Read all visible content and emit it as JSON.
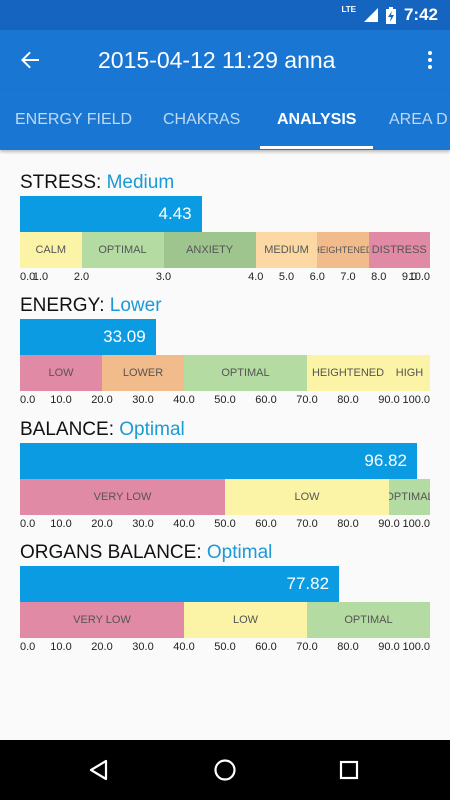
{
  "status_bar": {
    "network": "LTE",
    "time": "7:42",
    "icons": [
      "lte-signal-icon",
      "battery-charging-icon"
    ]
  },
  "app_bar": {
    "title": "2015-04-12 11:29 anna",
    "back_icon": "arrow-back-icon",
    "menu_icon": "more-vert-icon"
  },
  "tabs": [
    {
      "label": "ENERGY FIELD",
      "active": false
    },
    {
      "label": "CHAKRAS",
      "active": false
    },
    {
      "label": "ANALYSIS",
      "active": true
    },
    {
      "label": "AREA D",
      "active": false
    }
  ],
  "colors": {
    "app_bar": "#1976d2",
    "status_bar": "#1565c0",
    "bar": "#0a9be3",
    "level_text": "#1a9ad6",
    "pink": "#e08aa5",
    "green": "#b4dba2",
    "dark_green": "#9fc58e",
    "peach": "#fcd9a4",
    "orange": "#f2bb8c",
    "yellow": "#fbf3a6"
  },
  "sections": [
    {
      "label": "STRESS:",
      "level": "Medium",
      "value": 4.43,
      "value_text": "4.43",
      "min": 0,
      "max": 10,
      "zones": [
        {
          "label": "CALM",
          "from": 0,
          "to": 1.5,
          "color": "#fbf3a6"
        },
        {
          "label": "OPTIMAL",
          "from": 1.5,
          "to": 3.5,
          "color": "#b4dba2"
        },
        {
          "label": "ANXIETY",
          "from": 3.5,
          "to": 5.75,
          "color": "#9fc58e"
        },
        {
          "label": "MEDIUM",
          "from": 5.75,
          "to": 7.25,
          "color": "#fcd9a4"
        },
        {
          "label": "HEIGHTENED",
          "from": 7.25,
          "to": 8.5,
          "color": "#f2bb8c"
        },
        {
          "label": "DISTRESS",
          "from": 8.5,
          "to": 10,
          "color": "#e08aa5"
        }
      ],
      "ticks": [
        {
          "label": "0.0",
          "at": 0
        },
        {
          "label": "1.0",
          "at": 0.5
        },
        {
          "label": "2.0",
          "at": 1.5
        },
        {
          "label": "3.0",
          "at": 3.5
        },
        {
          "label": "4.0",
          "at": 5.75
        },
        {
          "label": "5.0",
          "at": 6.5
        },
        {
          "label": "6.0",
          "at": 7.25
        },
        {
          "label": "7.0",
          "at": 8
        },
        {
          "label": "8.0",
          "at": 8.75
        },
        {
          "label": "9.0",
          "at": 9.5
        },
        {
          "label": "10.0",
          "at": 10
        }
      ]
    },
    {
      "label": "ENERGY:",
      "level": "Lower",
      "value": 33.09,
      "value_text": "33.09",
      "min": 0,
      "max": 100,
      "zones": [
        {
          "label": "LOW",
          "from": 0,
          "to": 20,
          "color": "#e08aa5"
        },
        {
          "label": "LOWER",
          "from": 20,
          "to": 40,
          "color": "#f2bb8c"
        },
        {
          "label": "OPTIMAL",
          "from": 40,
          "to": 70,
          "color": "#b4dba2"
        },
        {
          "label": "HEIGHTENED",
          "from": 70,
          "to": 90,
          "color": "#fbf3a6"
        },
        {
          "label": "HIGH",
          "from": 90,
          "to": 100,
          "color": "#fbf3a6"
        }
      ],
      "ticks": [
        {
          "label": "0.0",
          "at": 0
        },
        {
          "label": "10.0",
          "at": 10
        },
        {
          "label": "20.0",
          "at": 20
        },
        {
          "label": "30.0",
          "at": 30
        },
        {
          "label": "40.0",
          "at": 40
        },
        {
          "label": "50.0",
          "at": 50
        },
        {
          "label": "60.0",
          "at": 60
        },
        {
          "label": "70.0",
          "at": 70
        },
        {
          "label": "80.0",
          "at": 80
        },
        {
          "label": "90.0",
          "at": 90
        },
        {
          "label": "100.0",
          "at": 100
        }
      ]
    },
    {
      "label": "BALANCE:",
      "level": "Optimal",
      "value": 96.82,
      "value_text": "96.82",
      "min": 0,
      "max": 100,
      "zones": [
        {
          "label": "VERY LOW",
          "from": 0,
          "to": 50,
          "color": "#e08aa5"
        },
        {
          "label": "LOW",
          "from": 50,
          "to": 90,
          "color": "#fbf3a6"
        },
        {
          "label": "OPTIMAL",
          "from": 90,
          "to": 100,
          "color": "#b4dba2"
        }
      ],
      "ticks": [
        {
          "label": "0.0",
          "at": 0
        },
        {
          "label": "10.0",
          "at": 10
        },
        {
          "label": "20.0",
          "at": 20
        },
        {
          "label": "30.0",
          "at": 30
        },
        {
          "label": "40.0",
          "at": 40
        },
        {
          "label": "50.0",
          "at": 50
        },
        {
          "label": "60.0",
          "at": 60
        },
        {
          "label": "70.0",
          "at": 70
        },
        {
          "label": "80.0",
          "at": 80
        },
        {
          "label": "90.0",
          "at": 90
        },
        {
          "label": "100.0",
          "at": 100
        }
      ]
    },
    {
      "label": "ORGANS BALANCE:",
      "level": "Optimal",
      "value": 77.82,
      "value_text": "77.82",
      "min": 0,
      "max": 100,
      "zones": [
        {
          "label": "VERY LOW",
          "from": 0,
          "to": 40,
          "color": "#e08aa5"
        },
        {
          "label": "LOW",
          "from": 40,
          "to": 70,
          "color": "#fbf3a6"
        },
        {
          "label": "OPTIMAL",
          "from": 70,
          "to": 100,
          "color": "#b4dba2"
        }
      ],
      "ticks": [
        {
          "label": "0.0",
          "at": 0
        },
        {
          "label": "10.0",
          "at": 10
        },
        {
          "label": "20.0",
          "at": 20
        },
        {
          "label": "30.0",
          "at": 30
        },
        {
          "label": "40.0",
          "at": 40
        },
        {
          "label": "50.0",
          "at": 50
        },
        {
          "label": "60.0",
          "at": 60
        },
        {
          "label": "70.0",
          "at": 70
        },
        {
          "label": "80.0",
          "at": 80
        },
        {
          "label": "90.0",
          "at": 90
        },
        {
          "label": "100.0",
          "at": 100
        }
      ]
    }
  ],
  "nav_bar": {
    "icons": [
      "back-triangle-icon",
      "home-circle-icon",
      "recents-square-icon"
    ]
  }
}
